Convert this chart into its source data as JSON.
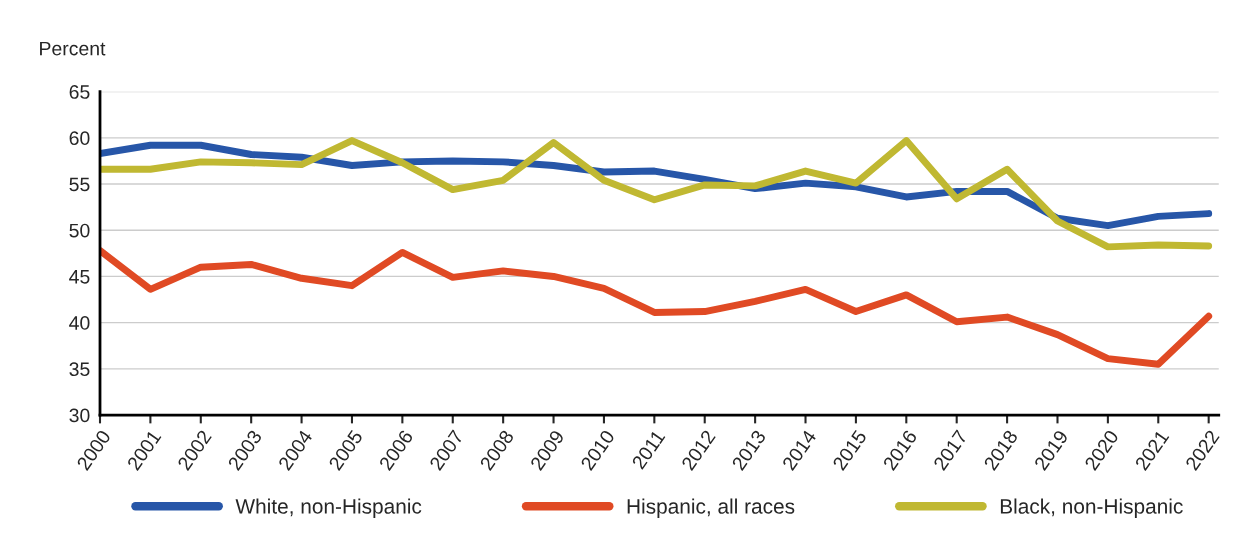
{
  "chart_data": {
    "type": "line",
    "ylabel": "Percent",
    "categories": [
      "2000",
      "2001",
      "2002",
      "2003",
      "2004",
      "2005",
      "2006",
      "2007",
      "2008",
      "2009",
      "2010",
      "2011",
      "2012",
      "2013",
      "2014",
      "2015",
      "2016",
      "2017",
      "2018",
      "2019",
      "2020",
      "2021",
      "2022"
    ],
    "series": [
      {
        "name": "White, non-Hispanic",
        "color": "#2756a8",
        "values": [
          58.3,
          59.2,
          59.2,
          58.2,
          57.9,
          57.0,
          57.4,
          57.5,
          57.4,
          57.0,
          56.3,
          56.4,
          55.5,
          54.5,
          55.1,
          54.7,
          53.6,
          54.2,
          54.2,
          51.3,
          50.5,
          51.5,
          51.8
        ]
      },
      {
        "name": "Hispanic, all races",
        "color": "#e04a24",
        "values": [
          47.8,
          43.6,
          46.0,
          46.3,
          44.8,
          44.0,
          47.6,
          44.9,
          45.6,
          45.0,
          43.7,
          41.1,
          41.2,
          42.3,
          43.6,
          41.2,
          43.0,
          40.1,
          40.6,
          38.7,
          36.1,
          35.5,
          40.7
        ]
      },
      {
        "name": "Black, non-Hispanic",
        "color": "#c0b832",
        "values": [
          56.6,
          56.6,
          57.4,
          57.3,
          57.1,
          59.7,
          57.3,
          54.4,
          55.4,
          59.5,
          55.4,
          53.3,
          54.9,
          54.8,
          56.4,
          55.1,
          59.7,
          53.4,
          56.6,
          51.0,
          48.2,
          48.4,
          48.3
        ]
      }
    ],
    "ylim": [
      30,
      65
    ],
    "yticks": [
      30,
      35,
      40,
      45,
      50,
      55,
      60,
      65
    ],
    "grid": "y",
    "legend": "bottom",
    "line_style": "solid",
    "marker": "none"
  }
}
